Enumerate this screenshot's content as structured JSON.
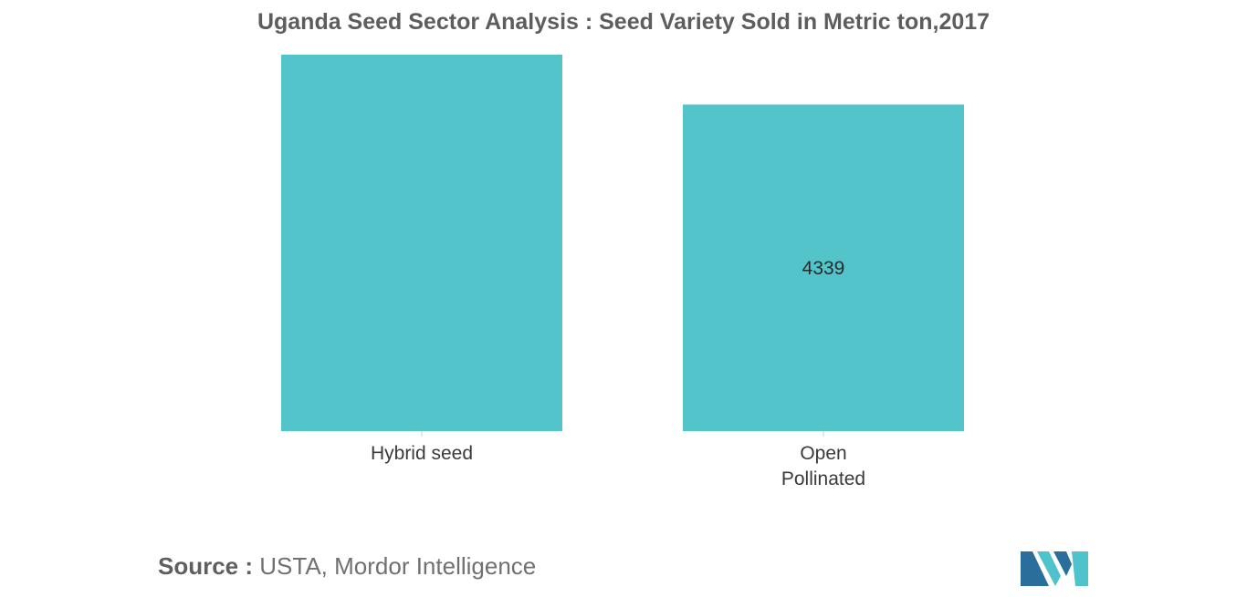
{
  "chart_data": {
    "type": "bar",
    "title": "Uganda Seed Sector Analysis : Seed Variety Sold in Metric ton,2017",
    "categories": [
      "Hybrid seed",
      "Open Pollinated"
    ],
    "category_lines": [
      [
        "Hybrid seed"
      ],
      [
        "Open",
        "Pollinated"
      ]
    ],
    "values": [
      5000,
      4339
    ],
    "data_labels": [
      "",
      "4339"
    ],
    "ylim": [
      0,
      5000
    ],
    "xlabel": "",
    "ylabel": "",
    "grid": false,
    "legend": "none",
    "bar_color": "#52c4ca"
  },
  "source": {
    "label": "Source :",
    "text": "USTA, Mordor Intelligence"
  },
  "colors": {
    "title": "#5d5d5d",
    "bar": "#52c4ca",
    "logo_dark": "#2a6f9b",
    "logo_light": "#4fc3cb"
  }
}
